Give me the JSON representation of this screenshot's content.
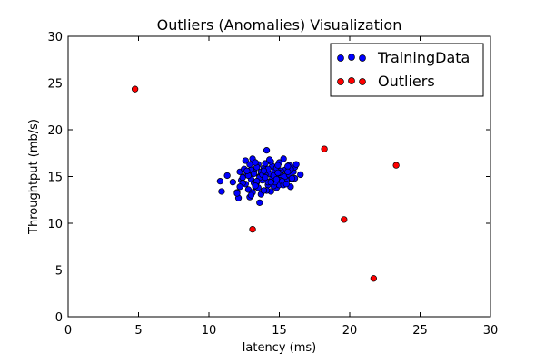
{
  "chart_data": {
    "type": "scatter",
    "title": "Outliers (Anomalies) Visualization",
    "xlabel": "latency (ms)",
    "ylabel": "Throughtput (mb/s)",
    "xlim": [
      0,
      30
    ],
    "ylim": [
      0,
      30
    ],
    "xticks": [
      "0",
      "5",
      "10",
      "15",
      "20",
      "25",
      "30"
    ],
    "yticks": [
      "0",
      "5",
      "10",
      "15",
      "20",
      "25",
      "30"
    ],
    "grid": false,
    "legend_position": "top-right",
    "series": [
      {
        "name": "TrainingData",
        "color": "#0000ff",
        "x": [
          10.8,
          10.9,
          11.3,
          11.7,
          12.0,
          12.1,
          12.2,
          12.3,
          12.4,
          12.5,
          12.6,
          12.7,
          12.8,
          12.9,
          13.0,
          13.1,
          13.2,
          13.3,
          13.4,
          13.5,
          13.6,
          13.7,
          13.8,
          13.9,
          14.0,
          14.1,
          14.2,
          14.3,
          14.4,
          14.5,
          14.6,
          14.7,
          14.8,
          14.9,
          15.0,
          15.1,
          15.2,
          15.3,
          15.4,
          15.5,
          15.6,
          15.7,
          15.8,
          15.9,
          16.0,
          16.1,
          16.2,
          16.5,
          12.6,
          13.0,
          13.4,
          14.2,
          14.6,
          15.0,
          15.4,
          15.8,
          13.2,
          13.6,
          14.0,
          14.4,
          14.8,
          15.2,
          15.6,
          12.8,
          13.3,
          13.7,
          14.1,
          14.5,
          14.9,
          15.3,
          15.7,
          16.1,
          12.4,
          12.9,
          13.8,
          14.3,
          14.7,
          15.1,
          15.5,
          13.1,
          13.5,
          13.9,
          14.2,
          14.6,
          15.0,
          12.2,
          13.0,
          13.4,
          13.9,
          14.8,
          15.9,
          12.0,
          13.6,
          14.0,
          14.4,
          13.2,
          12.7,
          14.9,
          15.6,
          13.3
        ],
        "y": [
          14.5,
          13.4,
          15.1,
          14.4,
          13.3,
          12.7,
          15.5,
          14.6,
          14.9,
          15.8,
          16.7,
          15.3,
          13.6,
          12.8,
          14.7,
          16.9,
          15.6,
          13.9,
          14.4,
          16.3,
          15.0,
          13.1,
          14.6,
          15.9,
          16.4,
          17.8,
          14.1,
          15.3,
          13.4,
          16.1,
          14.8,
          15.6,
          13.8,
          14.9,
          16.5,
          15.2,
          14.3,
          16.9,
          15.7,
          14.6,
          15.4,
          16.2,
          13.9,
          14.7,
          15.5,
          16.0,
          16.3,
          15.2,
          14.2,
          15.7,
          16.0,
          14.4,
          14.0,
          14.1,
          15.0,
          15.8,
          14.3,
          14.9,
          15.2,
          16.6,
          15.9,
          14.5,
          16.1,
          15.1,
          16.5,
          15.5,
          13.5,
          14.8,
          16.2,
          14.1,
          15.2,
          14.8,
          14.3,
          16.3,
          15.2,
          16.8,
          14.4,
          15.6,
          14.2,
          13.3,
          13.8,
          13.5,
          15.8,
          15.1,
          15.4,
          13.9,
          13.0,
          14.5,
          15.6,
          14.7,
          14.8,
          13.2,
          12.2,
          14.9,
          14.4,
          15.3,
          15.6,
          15.4,
          15.5,
          14.0
        ]
      },
      {
        "name": "Outliers",
        "color": "#ff0000",
        "x": [
          4.75,
          13.1,
          18.2,
          19.6,
          21.7,
          23.3
        ],
        "y": [
          24.35,
          9.35,
          17.95,
          10.4,
          4.1,
          16.2
        ]
      }
    ]
  }
}
